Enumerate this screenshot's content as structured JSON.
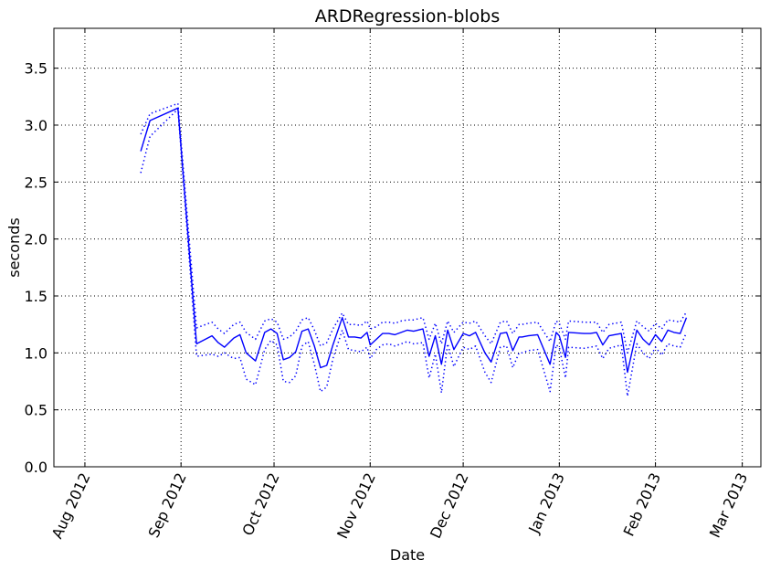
{
  "chart_data": {
    "type": "line",
    "title": "ARDRegression-blobs",
    "xlabel": "Date",
    "ylabel": "seconds",
    "xlim": [
      "2012-07-22",
      "2013-03-07"
    ],
    "ylim": [
      0.0,
      3.85
    ],
    "x_ticks": [
      {
        "date": "2012-08-01",
        "label": "Aug 2012"
      },
      {
        "date": "2012-09-01",
        "label": "Sep 2012"
      },
      {
        "date": "2012-10-01",
        "label": "Oct 2012"
      },
      {
        "date": "2012-11-01",
        "label": "Nov 2012"
      },
      {
        "date": "2012-12-01",
        "label": "Dec 2012"
      },
      {
        "date": "2013-01-01",
        "label": "Jan 2013"
      },
      {
        "date": "2013-02-01",
        "label": "Feb 2013"
      },
      {
        "date": "2013-03-01",
        "label": "Mar 2013"
      }
    ],
    "y_ticks": [
      {
        "value": 0.0,
        "label": "0.0"
      },
      {
        "value": 0.5,
        "label": "0.5"
      },
      {
        "value": 1.0,
        "label": "1.0"
      },
      {
        "value": 1.5,
        "label": "1.5"
      },
      {
        "value": 2.0,
        "label": "2.0"
      },
      {
        "value": 2.5,
        "label": "2.5"
      },
      {
        "value": 3.0,
        "label": "3.0"
      },
      {
        "value": 3.5,
        "label": "3.5"
      }
    ],
    "grid": true,
    "line_color": "#0000ff",
    "x": [
      "2012-08-19",
      "2012-08-22",
      "2012-08-31",
      "2012-09-06",
      "2012-09-11",
      "2012-09-13",
      "2012-09-15",
      "2012-09-18",
      "2012-09-20",
      "2012-09-22",
      "2012-09-25",
      "2012-09-28",
      "2012-09-30",
      "2012-10-02",
      "2012-10-04",
      "2012-10-06",
      "2012-10-08",
      "2012-10-10",
      "2012-10-12",
      "2012-10-14",
      "2012-10-16",
      "2012-10-18",
      "2012-10-20",
      "2012-10-23",
      "2012-10-25",
      "2012-10-27",
      "2012-10-29",
      "2012-10-31",
      "2012-11-01",
      "2012-11-03",
      "2012-11-05",
      "2012-11-07",
      "2012-11-09",
      "2012-11-11",
      "2012-11-13",
      "2012-11-15",
      "2012-11-18",
      "2012-11-20",
      "2012-11-22",
      "2012-11-24",
      "2012-11-26",
      "2012-11-28",
      "2012-12-01",
      "2012-12-03",
      "2012-12-05",
      "2012-12-08",
      "2012-12-10",
      "2012-12-13",
      "2012-12-15",
      "2012-12-17",
      "2012-12-19",
      "2012-12-20",
      "2012-12-22",
      "2012-12-25",
      "2012-12-29",
      "2012-12-31",
      "2013-01-01",
      "2013-01-03",
      "2013-01-04",
      "2013-01-09",
      "2013-01-11",
      "2013-01-13",
      "2013-01-15",
      "2013-01-17",
      "2013-01-21",
      "2013-01-23",
      "2013-01-26",
      "2013-01-28",
      "2013-01-30",
      "2013-02-01",
      "2013-02-03",
      "2013-02-05",
      "2013-02-07",
      "2013-02-09",
      "2013-02-11"
    ],
    "series": [
      {
        "style": "solid",
        "values": [
          2.77,
          3.04,
          3.15,
          1.08,
          1.15,
          1.09,
          1.05,
          1.13,
          1.16,
          1.0,
          0.93,
          1.18,
          1.21,
          1.17,
          0.94,
          0.96,
          1.01,
          1.19,
          1.21,
          1.06,
          0.87,
          0.89,
          1.07,
          1.31,
          1.14,
          1.14,
          1.13,
          1.18,
          1.07,
          1.12,
          1.17,
          1.17,
          1.16,
          1.18,
          1.2,
          1.19,
          1.21,
          0.97,
          1.15,
          0.9,
          1.2,
          1.03,
          1.17,
          1.15,
          1.18,
          1.0,
          0.92,
          1.17,
          1.18,
          1.02,
          1.14,
          1.14,
          1.15,
          1.16,
          0.9,
          1.18,
          1.15,
          0.96,
          1.18,
          1.17,
          1.17,
          1.18,
          1.07,
          1.15,
          1.17,
          0.83,
          1.2,
          1.12,
          1.07,
          1.16,
          1.1,
          1.2,
          1.18,
          1.17,
          1.31
        ]
      },
      {
        "style": "dotted",
        "values": [
          2.58,
          2.9,
          3.14,
          0.97,
          0.99,
          0.97,
          1.0,
          0.95,
          0.96,
          0.77,
          0.72,
          1.03,
          1.11,
          1.07,
          0.75,
          0.74,
          0.8,
          1.06,
          1.1,
          0.9,
          0.66,
          0.7,
          0.95,
          1.2,
          1.03,
          1.02,
          1.01,
          1.05,
          0.95,
          1.03,
          1.07,
          1.08,
          1.06,
          1.08,
          1.1,
          1.08,
          1.09,
          0.78,
          0.99,
          0.65,
          1.08,
          0.88,
          1.05,
          1.03,
          1.06,
          0.83,
          0.74,
          1.05,
          1.06,
          0.87,
          1.0,
          1.0,
          1.02,
          1.03,
          0.66,
          1.07,
          1.05,
          0.78,
          1.05,
          1.04,
          1.05,
          1.06,
          0.95,
          1.04,
          1.07,
          0.62,
          1.08,
          1.0,
          0.95,
          1.05,
          0.98,
          1.08,
          1.06,
          1.05,
          1.18
        ]
      },
      {
        "style": "dotted",
        "values": [
          2.92,
          3.1,
          3.19,
          1.22,
          1.27,
          1.21,
          1.17,
          1.25,
          1.27,
          1.18,
          1.12,
          1.28,
          1.3,
          1.27,
          1.12,
          1.14,
          1.19,
          1.29,
          1.31,
          1.2,
          1.06,
          1.09,
          1.21,
          1.35,
          1.25,
          1.25,
          1.24,
          1.28,
          1.21,
          1.23,
          1.27,
          1.27,
          1.26,
          1.28,
          1.29,
          1.29,
          1.31,
          1.12,
          1.26,
          1.08,
          1.28,
          1.18,
          1.27,
          1.26,
          1.28,
          1.15,
          1.08,
          1.27,
          1.28,
          1.17,
          1.25,
          1.25,
          1.26,
          1.27,
          1.1,
          1.28,
          1.26,
          1.12,
          1.28,
          1.27,
          1.27,
          1.27,
          1.18,
          1.25,
          1.27,
          1.0,
          1.28,
          1.23,
          1.19,
          1.26,
          1.21,
          1.29,
          1.28,
          1.27,
          1.36
        ]
      }
    ]
  }
}
